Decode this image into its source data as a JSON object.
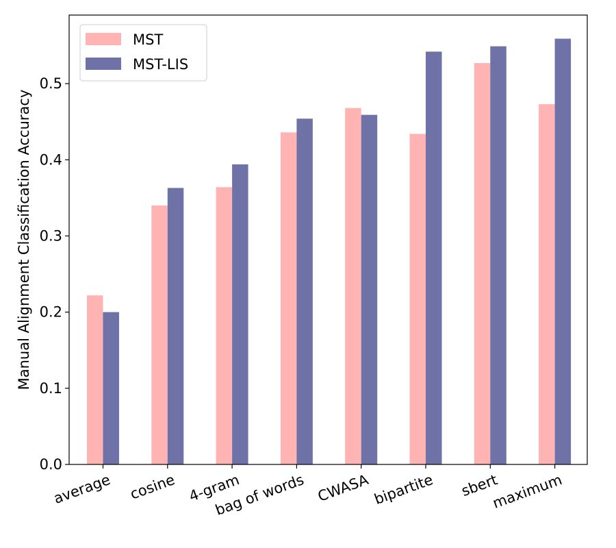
{
  "chart_data": {
    "type": "bar",
    "categories": [
      "average",
      "cosine",
      "4-gram",
      "bag of words",
      "CWASA",
      "bipartite",
      "sbert",
      "maximum"
    ],
    "series": [
      {
        "name": "MST",
        "values": [
          0.222,
          0.34,
          0.364,
          0.436,
          0.468,
          0.434,
          0.527,
          0.473
        ]
      },
      {
        "name": "MST-LIS",
        "values": [
          0.2,
          0.363,
          0.394,
          0.454,
          0.459,
          0.542,
          0.549,
          0.559
        ]
      }
    ],
    "title": "",
    "xlabel": "",
    "ylabel": "Manual Alignment Classification Accuracy",
    "ylim": [
      0.0,
      0.59
    ],
    "yticks": [
      0.0,
      0.1,
      0.2,
      0.3,
      0.4,
      0.5
    ],
    "ytick_labels": [
      "0.0",
      "0.1",
      "0.2",
      "0.3",
      "0.4",
      "0.5"
    ],
    "grid": false,
    "legend_position": "top-left",
    "colors": {
      "MST": "#ffb3b3",
      "MST-LIS": "#6f72a6"
    }
  }
}
